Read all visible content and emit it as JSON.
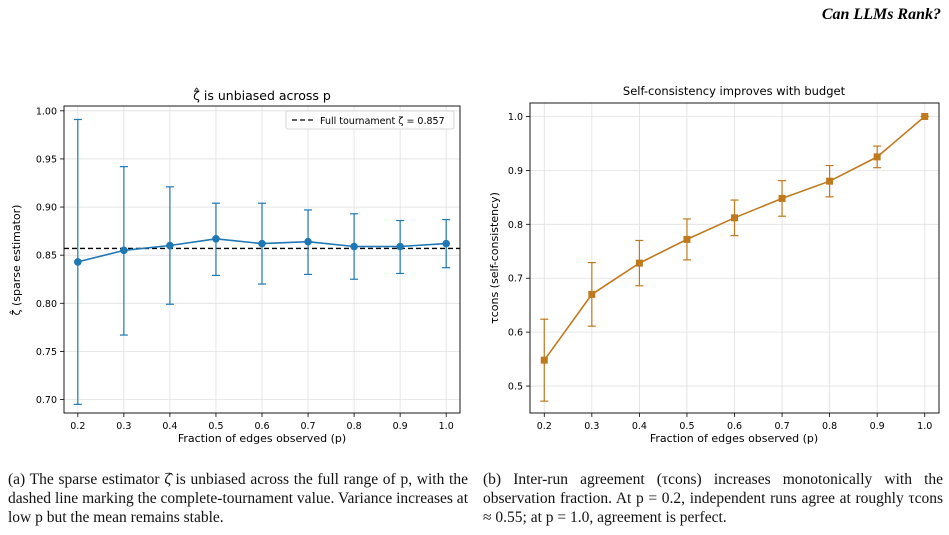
{
  "header": {
    "running_title": "Can LLMs Rank?"
  },
  "captions": {
    "a": "(a) The sparse estimator ζ̂ is unbiased across the full range of p, with the dashed line marking the complete-tournament value. Variance increases at low p but the mean remains stable.",
    "b": "(b) Inter-run agreement (τcons) increases monotonically with the observation fraction. At p = 0.2, independent runs agree at roughly τcons ≈ 0.55; at p = 1.0, agreement is perfect."
  },
  "chart_data": [
    {
      "type": "line",
      "title": "ζ̂ is unbiased across p",
      "xlabel": "Fraction of edges observed (p)",
      "ylabel": "ζ̂ (sparse estimator)",
      "x": [
        0.2,
        0.3,
        0.4,
        0.5,
        0.6,
        0.7,
        0.8,
        0.9,
        1.0
      ],
      "series": [
        {
          "values": [
            0.843,
            0.855,
            0.86,
            0.867,
            0.862,
            0.864,
            0.859,
            0.859,
            0.862
          ],
          "err_low": [
            0.695,
            0.767,
            0.799,
            0.829,
            0.82,
            0.83,
            0.825,
            0.831,
            0.837
          ],
          "err_high": [
            0.991,
            0.942,
            0.921,
            0.904,
            0.904,
            0.897,
            0.893,
            0.886,
            0.887
          ],
          "color": "#1f77b4",
          "marker": "circle"
        }
      ],
      "reference_line": {
        "value": 0.857,
        "label": "Full tournament ζ = 0.857",
        "style": "dashed",
        "color": "#000000"
      },
      "xticks": [
        "0.2",
        "0.3",
        "0.4",
        "0.5",
        "0.6",
        "0.7",
        "0.8",
        "0.9",
        "1.0"
      ],
      "yticks": [
        "0.70",
        "0.75",
        "0.80",
        "0.85",
        "0.90",
        "0.95",
        "1.00"
      ],
      "xlim": [
        0.17,
        1.03
      ],
      "ylim": [
        0.686,
        1.005
      ],
      "grid": true,
      "legend_position": "top-right"
    },
    {
      "type": "line",
      "title": "Self-consistency improves with budget",
      "xlabel": "Fraction of edges observed (p)",
      "ylabel": "τcons (self-consistency)",
      "x": [
        0.2,
        0.3,
        0.4,
        0.5,
        0.6,
        0.7,
        0.8,
        0.9,
        1.0
      ],
      "series": [
        {
          "values": [
            0.548,
            0.67,
            0.728,
            0.772,
            0.812,
            0.848,
            0.88,
            0.925,
            1.0
          ],
          "err_low": [
            0.472,
            0.611,
            0.686,
            0.734,
            0.779,
            0.815,
            0.851,
            0.905,
            1.0
          ],
          "err_high": [
            0.624,
            0.729,
            0.77,
            0.81,
            0.845,
            0.881,
            0.909,
            0.945,
            1.0
          ],
          "color": "#bf7a1e",
          "marker": "square"
        }
      ],
      "xticks": [
        "0.2",
        "0.3",
        "0.4",
        "0.5",
        "0.6",
        "0.7",
        "0.8",
        "0.9",
        "1.0"
      ],
      "yticks": [
        "0.5",
        "0.6",
        "0.7",
        "0.8",
        "0.9",
        "1.0"
      ],
      "xlim": [
        0.17,
        1.03
      ],
      "ylim": [
        0.45,
        1.025
      ],
      "grid": true
    }
  ]
}
